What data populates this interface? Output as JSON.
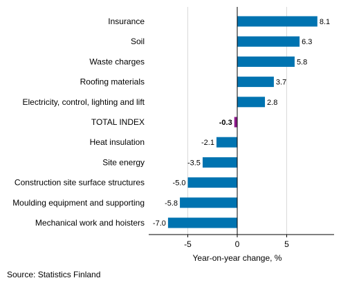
{
  "chart_data": {
    "type": "bar",
    "orientation": "horizontal",
    "categories": [
      "Insurance",
      "Soil",
      "Waste charges",
      "Roofing materials",
      "Electricity, control, lighting and lift",
      "TOTAL INDEX",
      "Heat insulation",
      "Site energy",
      "Construction site surface structures",
      "Moulding equipment and supporting",
      "Mechanical work and hoisters"
    ],
    "values": [
      8.1,
      6.3,
      5.8,
      3.7,
      2.8,
      -0.3,
      -2.1,
      -3.5,
      -5.0,
      -5.8,
      -7.0
    ],
    "value_labels": [
      "8.1",
      "6.3",
      "5.8",
      "3.7",
      "2.8",
      "-0.3",
      "-2.1",
      "-3.5",
      "-5.0",
      "-5.8",
      "-7.0"
    ],
    "highlight_category": "TOTAL INDEX",
    "xlabel": "Year-on-year change, %",
    "ylabel": "",
    "xlim": [
      -9,
      10
    ],
    "xticks": [
      -5,
      0,
      5
    ],
    "xtick_labels": [
      "-5",
      "0",
      "5"
    ],
    "grid": "vertical",
    "legend": "none",
    "colors": {
      "bar": "#0073b0",
      "highlight": "#8b1a89",
      "grid": "#d9d9d9",
      "axis": "#000000"
    }
  },
  "footer": {
    "source": "Source: Statistics Finland"
  }
}
